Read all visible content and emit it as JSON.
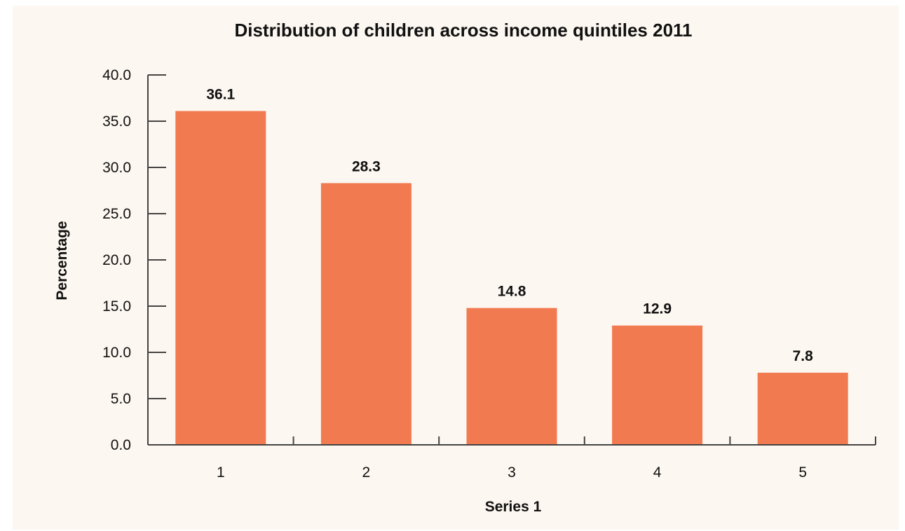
{
  "chart_data": {
    "type": "bar",
    "title": "Distribution of children across income quintiles 2011",
    "xlabel": "Series 1",
    "ylabel": "Percentage",
    "categories": [
      "1",
      "2",
      "3",
      "4",
      "5"
    ],
    "values": [
      36.1,
      28.3,
      14.8,
      12.9,
      7.8
    ],
    "data_labels": [
      "36.1",
      "28.3",
      "14.8",
      "12.9",
      "7.8"
    ],
    "ylim": [
      0,
      40
    ],
    "y_ticks": [
      "0.0",
      "5.0",
      "10.0",
      "15.0",
      "20.0",
      "25.0",
      "30.0",
      "35.0",
      "40.0"
    ],
    "grid": false,
    "bar_color": "#f27a50",
    "background_color": "#fcf7f0"
  }
}
